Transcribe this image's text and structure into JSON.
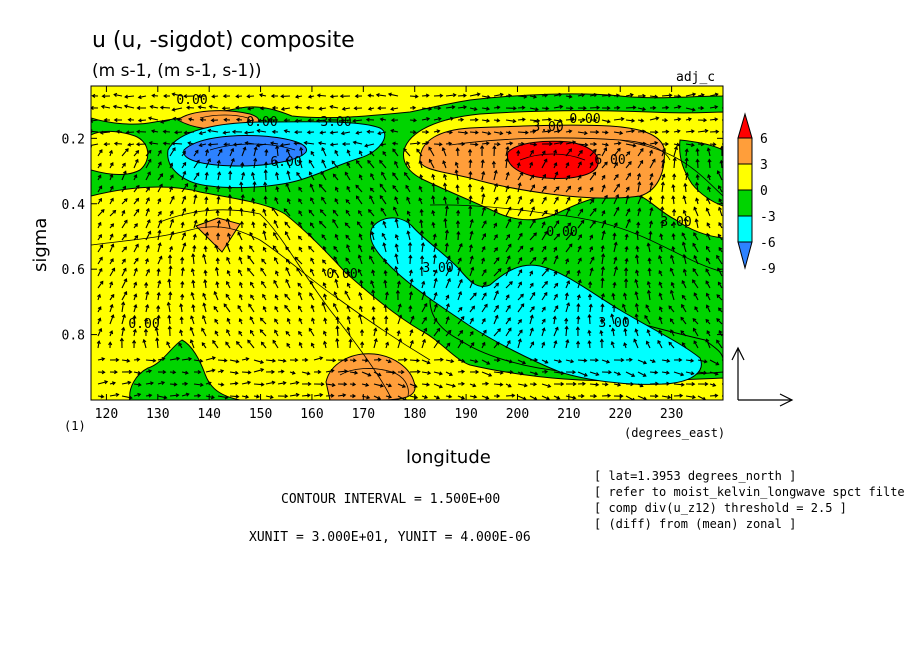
{
  "chart_data": {
    "type": "heatmap",
    "title": "u (u, -sigdot) composite",
    "subtitle": "(m s-1, (m s-1, s-1))",
    "tag": "adj_c",
    "xlabel": "longitude",
    "xunits": "(degrees_east)",
    "ylabel": "sigma",
    "ylabel_extra": "(1)",
    "xlim": [
      117,
      240
    ],
    "ylim": [
      0.04,
      1.0
    ],
    "y_reversed": true,
    "xticks": [
      "120",
      "130",
      "140",
      "150",
      "160",
      "170",
      "180",
      "190",
      "200",
      "210",
      "220",
      "230"
    ],
    "yticks": [
      "0.2",
      "0.4",
      "0.6",
      "0.8"
    ],
    "colorbar": {
      "labels": [
        "6",
        "3",
        "0",
        "-3",
        "-6",
        "-9"
      ],
      "colors": [
        "#ff0000",
        "#ff9e3a",
        "#ffff00",
        "#00d400",
        "#00ffff",
        "#2d82ff"
      ]
    },
    "contour_labels": [
      "0.00",
      "0.00",
      "3.00",
      "6.00",
      "3.00",
      "0.00",
      "6.00",
      "3.00",
      "0.00",
      "3.00",
      "0.00",
      "3.00",
      "0.00"
    ],
    "vector_legend": "reference arrow",
    "contour_interval": "CONTOUR INTERVAL = 1.500E+00",
    "units_line": "XUNIT = 3.000E+01, YUNIT = 4.000E-06",
    "notes": [
      "[ lat=1.3953 degrees_north ]",
      "[ refer to moist_kelvin_longwave spct filter",
      "[ comp div(u_z12) threshold = 2.5 ]",
      "[ (diff) from (mean) zonal ]"
    ]
  }
}
